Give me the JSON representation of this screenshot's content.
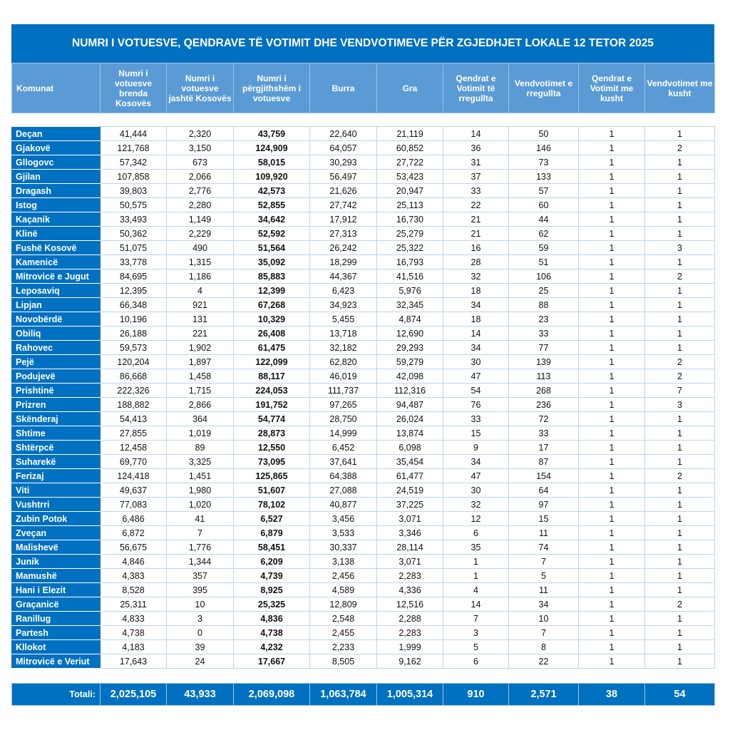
{
  "title": "NUMRI I VOTUESVE, QENDRAVE TË VOTIMIT DHE VENDVOTIMEVE PËR ZGJEDHJET LOKALE 12 TETOR 2025",
  "headers": [
    "Komunat",
    "Numri i votuesve brenda Kosovës",
    "Numri i votuesve jashtë Kosovës",
    "Numri i përgjithshëm i votuesve",
    "Burra",
    "Gra",
    "Qendrat e Votimit të rregullta",
    "Vendvotimet e rregullta",
    "Qendrat e Votimit me kusht",
    "Vendvotimet me kusht"
  ],
  "rows": [
    [
      "Deçan",
      "41,444",
      "2,320",
      "43,759",
      "22,640",
      "21,119",
      "14",
      "50",
      "1",
      "1"
    ],
    [
      "Gjakovë",
      "121,768",
      "3,150",
      "124,909",
      "64,057",
      "60,852",
      "36",
      "146",
      "1",
      "2"
    ],
    [
      "Gllogovc",
      "57,342",
      "673",
      "58,015",
      "30,293",
      "27,722",
      "31",
      "73",
      "1",
      "1"
    ],
    [
      "Gjilan",
      "107,858",
      "2,066",
      "109,920",
      "56,497",
      "53,423",
      "37",
      "133",
      "1",
      "1"
    ],
    [
      "Dragash",
      "39,803",
      "2,776",
      "42,573",
      "21,626",
      "20,947",
      "33",
      "57",
      "1",
      "1"
    ],
    [
      "Istog",
      "50,575",
      "2,280",
      "52,855",
      "27,742",
      "25,113",
      "22",
      "60",
      "1",
      "1"
    ],
    [
      "Kaçanik",
      "33,493",
      "1,149",
      "34,642",
      "17,912",
      "16,730",
      "21",
      "44",
      "1",
      "1"
    ],
    [
      "Klinë",
      "50,362",
      "2,229",
      "52,592",
      "27,313",
      "25,279",
      "21",
      "62",
      "1",
      "1"
    ],
    [
      "Fushë Kosovë",
      "51,075",
      "490",
      "51,564",
      "26,242",
      "25,322",
      "16",
      "59",
      "1",
      "3"
    ],
    [
      "Kamenicë",
      "33,778",
      "1,315",
      "35,092",
      "18,299",
      "16,793",
      "28",
      "51",
      "1",
      "1"
    ],
    [
      "Mitrovicë e Jugut",
      "84,695",
      "1,186",
      "85,883",
      "44,367",
      "41,516",
      "32",
      "106",
      "1",
      "2"
    ],
    [
      "Leposaviq",
      "12,395",
      "4",
      "12,399",
      "6,423",
      "5,976",
      "18",
      "25",
      "1",
      "1"
    ],
    [
      "Lipjan",
      "66,348",
      "921",
      "67,268",
      "34,923",
      "32,345",
      "34",
      "88",
      "1",
      "1"
    ],
    [
      "Novobërdë",
      "10,196",
      "131",
      "10,329",
      "5,455",
      "4,874",
      "18",
      "23",
      "1",
      "1"
    ],
    [
      "Obiliq",
      "26,188",
      "221",
      "26,408",
      "13,718",
      "12,690",
      "14",
      "33",
      "1",
      "1"
    ],
    [
      "Rahovec",
      "59,573",
      "1,902",
      "61,475",
      "32,182",
      "29,293",
      "34",
      "77",
      "1",
      "1"
    ],
    [
      "Pejë",
      "120,204",
      "1,897",
      "122,099",
      "62,820",
      "59,279",
      "30",
      "139",
      "1",
      "2"
    ],
    [
      "Podujevë",
      "86,668",
      "1,458",
      "88,117",
      "46,019",
      "42,098",
      "47",
      "113",
      "1",
      "2"
    ],
    [
      "Prishtinë",
      "222,326",
      "1,715",
      "224,053",
      "111,737",
      "112,316",
      "54",
      "268",
      "1",
      "7"
    ],
    [
      "Prizren",
      "188,882",
      "2,866",
      "191,752",
      "97,265",
      "94,487",
      "76",
      "236",
      "1",
      "3"
    ],
    [
      "Skënderaj",
      "54,413",
      "364",
      "54,774",
      "28,750",
      "26,024",
      "33",
      "72",
      "1",
      "1"
    ],
    [
      "Shtime",
      "27,855",
      "1,019",
      "28,873",
      "14,999",
      "13,874",
      "15",
      "33",
      "1",
      "1"
    ],
    [
      "Shtërpcë",
      "12,458",
      "89",
      "12,550",
      "6,452",
      "6,098",
      "9",
      "17",
      "1",
      "1"
    ],
    [
      "Suharekë",
      "69,770",
      "3,325",
      "73,095",
      "37,641",
      "35,454",
      "34",
      "87",
      "1",
      "1"
    ],
    [
      "Ferizaj",
      "124,418",
      "1,451",
      "125,865",
      "64,388",
      "61,477",
      "47",
      "154",
      "1",
      "2"
    ],
    [
      "Viti",
      "49,637",
      "1,980",
      "51,607",
      "27,088",
      "24,519",
      "30",
      "64",
      "1",
      "1"
    ],
    [
      "Vushtrri",
      "77,083",
      "1,020",
      "78,102",
      "40,877",
      "37,225",
      "32",
      "97",
      "1",
      "1"
    ],
    [
      "Zubin Potok",
      "6,486",
      "41",
      "6,527",
      "3,456",
      "3,071",
      "12",
      "15",
      "1",
      "1"
    ],
    [
      "Zveçan",
      "6,872",
      "7",
      "6,879",
      "3,533",
      "3,346",
      "6",
      "11",
      "1",
      "1"
    ],
    [
      "Malishevë",
      "56,675",
      "1,776",
      "58,451",
      "30,337",
      "28,114",
      "35",
      "74",
      "1",
      "1"
    ],
    [
      "Junik",
      "4,846",
      "1,344",
      "6,209",
      "3,138",
      "3,071",
      "1",
      "7",
      "1",
      "1"
    ],
    [
      "Mamushë",
      "4,383",
      "357",
      "4,739",
      "2,456",
      "2,283",
      "1",
      "5",
      "1",
      "1"
    ],
    [
      "Hani i Elezit",
      "8,528",
      "395",
      "8,925",
      "4,589",
      "4,336",
      "4",
      "11",
      "1",
      "1"
    ],
    [
      "Graçanicë",
      "25,311",
      "10",
      "25,325",
      "12,809",
      "12,516",
      "14",
      "34",
      "1",
      "2"
    ],
    [
      "Ranillug",
      "4,833",
      "3",
      "4,836",
      "2,548",
      "2,288",
      "7",
      "10",
      "1",
      "1"
    ],
    [
      "Partesh",
      "4,738",
      "0",
      "4,738",
      "2,455",
      "2,283",
      "3",
      "7",
      "1",
      "1"
    ],
    [
      "Kllokot",
      "4,183",
      "39",
      "4,232",
      "2,233",
      "1,999",
      "5",
      "8",
      "1",
      "1"
    ],
    [
      "Mitrovicë e Veriut",
      "17,643",
      "24",
      "17,667",
      "8,505",
      "9,162",
      "6",
      "22",
      "1",
      "1"
    ]
  ],
  "totals": [
    "Totali:",
    "2,025,105",
    "43,933",
    "2,069,098",
    "1,063,784",
    "1,005,314",
    "910",
    "2,571",
    "38",
    "54"
  ],
  "colors": {
    "title_bg": "#0070c0",
    "header_bg": "#5b9bd5",
    "border": "#bcd6ee"
  }
}
